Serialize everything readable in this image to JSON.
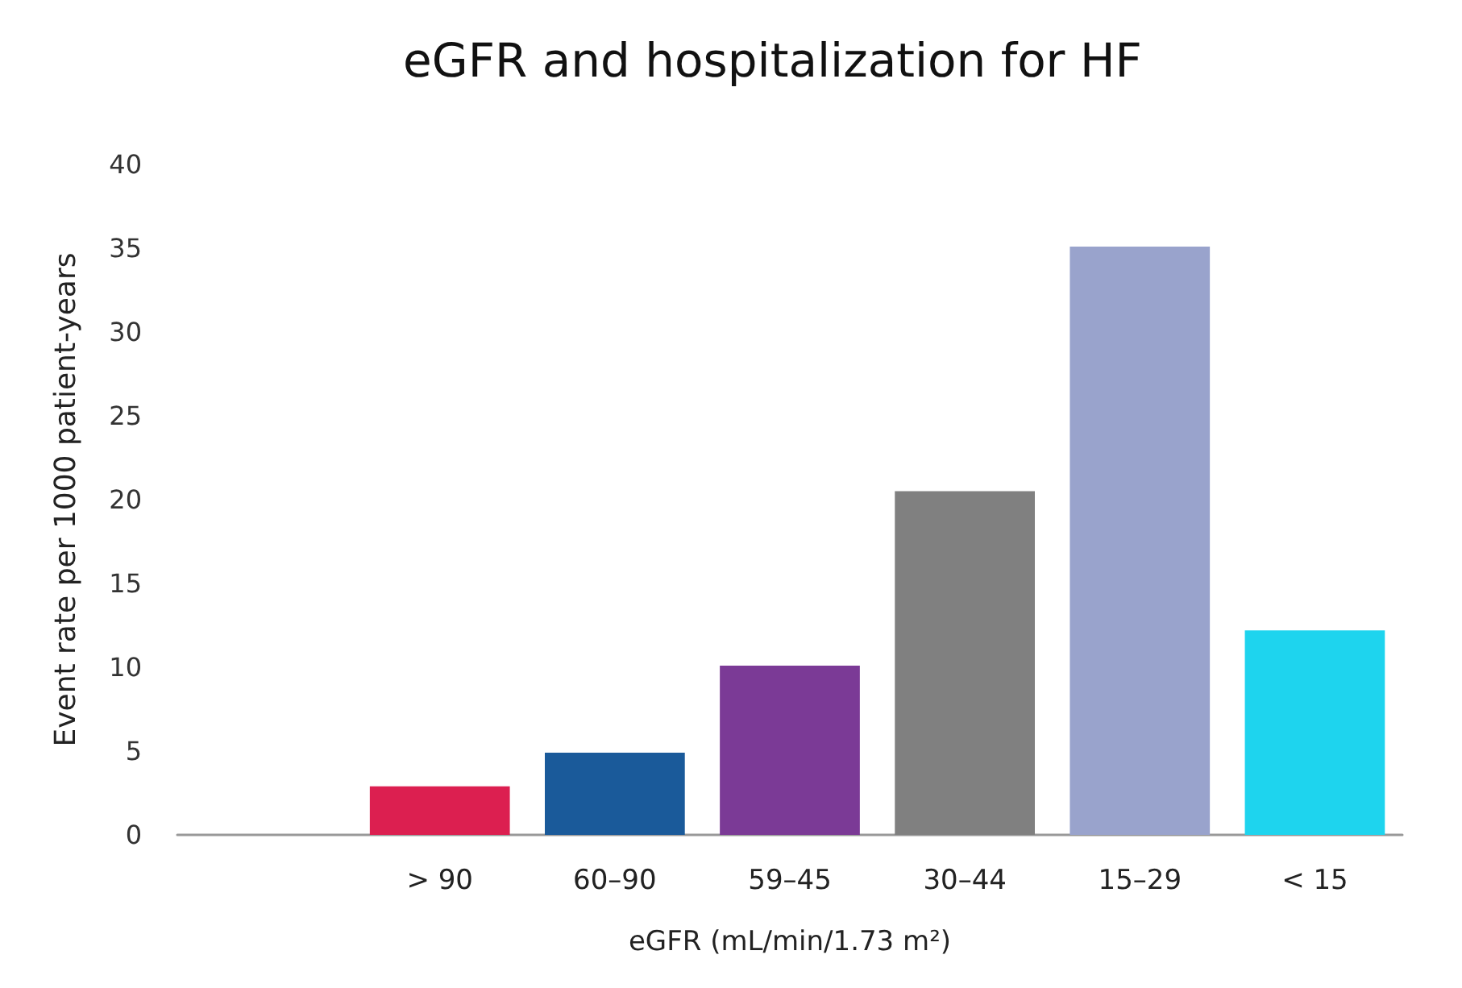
{
  "chart_data": {
    "type": "bar",
    "title": "eGFR and hospitalization for HF",
    "xlabel": "eGFR (mL/min/1.73 m²)",
    "ylabel": "Event rate per 1000 patient-years",
    "categories": [
      null,
      "> 90",
      "60–90",
      "59–45",
      "30–44",
      "15–29",
      "< 15"
    ],
    "values": [
      null,
      2.9,
      4.9,
      10.1,
      20.5,
      35.1,
      12.2
    ],
    "colors": [
      "#dc1f50",
      "#dc1f50",
      "#1a5a9a",
      "#7b3a96",
      "#808080",
      "#99a3cc",
      "#1ed4ee"
    ],
    "ylim": [
      0,
      40
    ],
    "yticks": [
      0,
      5,
      10,
      15,
      20,
      25,
      30,
      35,
      40
    ],
    "grid": false
  }
}
